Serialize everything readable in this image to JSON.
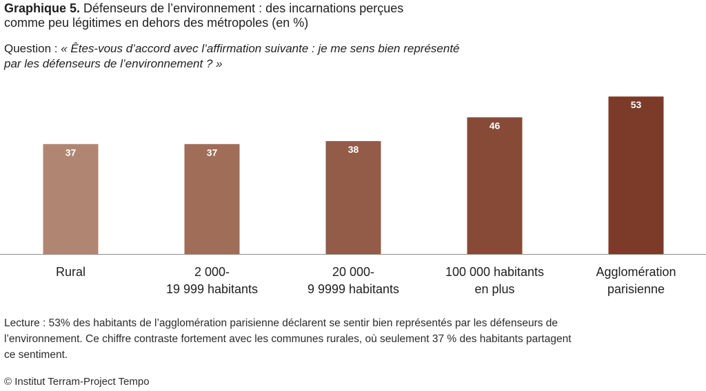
{
  "header": {
    "title_number": "Graphique 5.",
    "title_line1": " Défenseurs de l’environnement : des incarnations perçues",
    "title_line2": "comme peu légitimes en dehors des métropoles (en %)",
    "question_label": "Question : ",
    "question_line1": "« Êtes-vous d’accord avec l’affirmation suivante : je me sens bien représenté",
    "question_line2": "par les défenseurs de l’environnement ? »"
  },
  "chart_data": {
    "type": "bar",
    "categories": [
      [
        "Rural"
      ],
      [
        "2 000-",
        "19 999 habitants"
      ],
      [
        "20 000-",
        "9 9999 habitants"
      ],
      [
        "100 000 habitants",
        "en plus"
      ],
      [
        "Agglomération",
        "parisienne"
      ]
    ],
    "values": [
      37,
      37,
      38,
      46,
      53
    ],
    "data_labels": [
      "37",
      "37",
      "38",
      "46",
      "53"
    ],
    "colors": [
      "#b08672",
      "#a06d59",
      "#925c48",
      "#864a37",
      "#7b3b28"
    ],
    "ylim": [
      0,
      60
    ],
    "grid": false,
    "legend": "none"
  },
  "footer": {
    "reading_line1": "Lecture : 53% des habitants de l’agglomération parisienne déclarent se sentir bien représentés par les défenseurs de",
    "reading_line2": "l’environnement. Ce chiffre contraste fortement avec les communes rurales, où seulement 37 % des habitants partagent",
    "reading_line3": "ce sentiment.",
    "source": "© Institut Terram-Project Tempo"
  }
}
